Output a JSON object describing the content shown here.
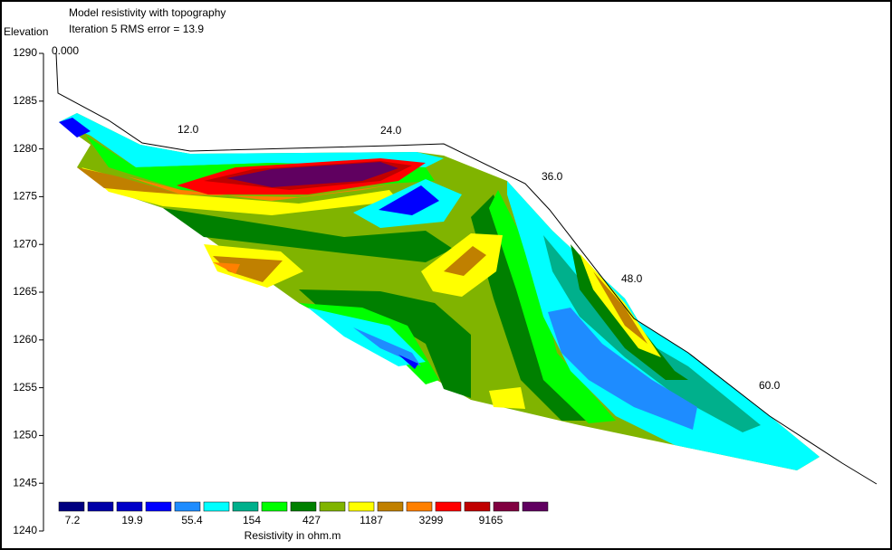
{
  "chart_data": {
    "type": "resistivity-section",
    "title": "Model resistivity with topography",
    "subtitle": "Iteration 5 RMS error = 13.9",
    "y_label": "Elevation",
    "ylim": [
      1240,
      1290
    ],
    "yticks": [
      1240,
      1245,
      1250,
      1255,
      1260,
      1265,
      1270,
      1275,
      1280,
      1285,
      1290
    ],
    "distance_labels": [
      {
        "value": 0,
        "label": "0.000"
      },
      {
        "value": 12,
        "label": "12.0"
      },
      {
        "value": 24,
        "label": "24.0"
      },
      {
        "value": 36,
        "label": "36.0"
      },
      {
        "value": 48,
        "label": "48.0"
      },
      {
        "value": 60,
        "label": "60.0"
      }
    ],
    "colorbar": {
      "label": "Resistivity in ohm.m",
      "colors": [
        "#000080",
        "#0000a8",
        "#0000c8",
        "#0000ff",
        "#1e8cff",
        "#00ffff",
        "#00b08c",
        "#00ff00",
        "#008000",
        "#80b400",
        "#ffff00",
        "#c08000",
        "#ff8000",
        "#ff0000",
        "#c00000",
        "#800040",
        "#600060"
      ],
      "values": [
        7.2,
        19.9,
        55.4,
        154,
        427,
        1187,
        3299,
        9165
      ]
    }
  }
}
